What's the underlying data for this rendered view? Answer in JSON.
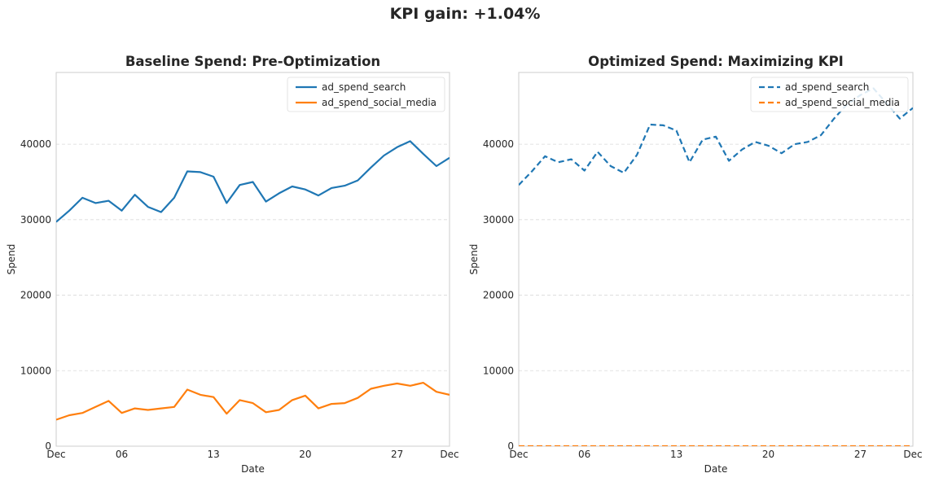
{
  "figure": {
    "title": "KPI gain: +1.04%"
  },
  "chart_data": [
    {
      "type": "line",
      "title": "Baseline Spend: Pre-Optimization",
      "xlabel": "Date",
      "ylabel": "Spend",
      "ylim": [
        0,
        49500
      ],
      "yticks": [
        0,
        10000,
        20000,
        30000,
        40000
      ],
      "ytick_labels": [
        "0",
        "10000",
        "20000",
        "30000",
        "40000"
      ],
      "xticks": [
        1,
        6,
        13,
        20,
        27,
        31
      ],
      "xtick_labels": [
        "Dec",
        "06",
        "13",
        "20",
        "27",
        "Dec"
      ],
      "xlim": [
        1,
        31
      ],
      "grid": "y-dashed",
      "legend": "top-right",
      "x": [
        1,
        2,
        3,
        4,
        5,
        6,
        7,
        8,
        9,
        10,
        11,
        12,
        13,
        14,
        15,
        16,
        17,
        18,
        19,
        20,
        21,
        22,
        23,
        24,
        25,
        26,
        27,
        28,
        29,
        30,
        31
      ],
      "series": [
        {
          "name": "ad_spend_search",
          "color": "#1f77b4",
          "style": "solid",
          "values": [
            29700,
            31200,
            32900,
            32200,
            32500,
            31200,
            33300,
            31700,
            31000,
            32900,
            36400,
            36300,
            35700,
            32200,
            34600,
            35000,
            32400,
            33500,
            34400,
            34000,
            33200,
            34200,
            34500,
            35200,
            36900,
            38500,
            39600,
            40400,
            38700,
            37100,
            38200
          ]
        },
        {
          "name": "ad_spend_social_media",
          "color": "#ff7f0e",
          "style": "solid",
          "values": [
            3500,
            4100,
            4400,
            5200,
            6000,
            4400,
            5000,
            4800,
            5000,
            5200,
            7500,
            6800,
            6500,
            4300,
            6100,
            5700,
            4500,
            4800,
            6100,
            6700,
            5000,
            5600,
            5700,
            6400,
            7600,
            8000,
            8300,
            8000,
            8400,
            7200,
            6800
          ]
        }
      ]
    },
    {
      "type": "line",
      "title": "Optimized Spend: Maximizing KPI",
      "xlabel": "Date",
      "ylabel": "Spend",
      "ylim": [
        0,
        49500
      ],
      "yticks": [
        0,
        10000,
        20000,
        30000,
        40000
      ],
      "ytick_labels": [
        "0",
        "10000",
        "20000",
        "30000",
        "40000"
      ],
      "xticks": [
        1,
        6,
        13,
        20,
        27,
        31
      ],
      "xtick_labels": [
        "Dec",
        "06",
        "13",
        "20",
        "27",
        "Dec"
      ],
      "xlim": [
        1,
        31
      ],
      "grid": "y-dashed",
      "legend": "top-right",
      "x": [
        1,
        2,
        3,
        4,
        5,
        6,
        7,
        8,
        9,
        10,
        11,
        12,
        13,
        14,
        15,
        16,
        17,
        18,
        19,
        20,
        21,
        22,
        23,
        24,
        25,
        26,
        27,
        28,
        29,
        30,
        31
      ],
      "series": [
        {
          "name": "ad_spend_search",
          "color": "#1f77b4",
          "style": "dashed",
          "values": [
            34600,
            36400,
            38400,
            37600,
            38000,
            36500,
            39000,
            37100,
            36200,
            38600,
            42600,
            42500,
            41800,
            37600,
            40600,
            41000,
            37800,
            39300,
            40300,
            39800,
            38800,
            40000,
            40300,
            41200,
            43400,
            45300,
            46500,
            47400,
            45400,
            43400,
            44800
          ]
        },
        {
          "name": "ad_spend_social_media",
          "color": "#ff7f0e",
          "style": "dashed",
          "values": [
            0,
            0,
            0,
            0,
            0,
            0,
            0,
            0,
            0,
            0,
            0,
            0,
            0,
            0,
            0,
            0,
            0,
            0,
            0,
            0,
            0,
            0,
            0,
            0,
            0,
            0,
            0,
            0,
            0,
            0,
            0
          ]
        }
      ]
    }
  ]
}
